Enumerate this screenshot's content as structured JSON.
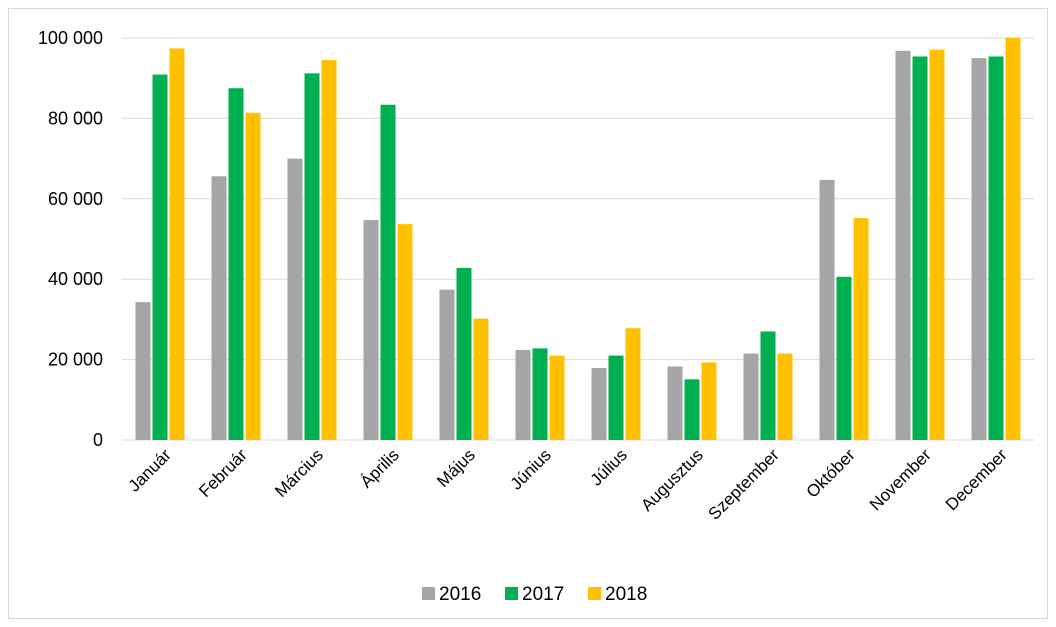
{
  "chart_data": {
    "type": "bar",
    "title": "",
    "xlabel": "",
    "ylabel": "",
    "ylim": [
      0,
      100000
    ],
    "yticks": [
      0,
      20000,
      40000,
      60000,
      80000,
      100000
    ],
    "ytick_labels": [
      "0",
      "20 000",
      "40 000",
      "60 000",
      "80 000",
      "100 000"
    ],
    "grid": "horizontal",
    "legend_position": "bottom",
    "categories": [
      "Január",
      "Február",
      "Március",
      "Április",
      "Május",
      "Június",
      "Július",
      "Augusztus",
      "Szeptember",
      "Október",
      "November",
      "December"
    ],
    "series": [
      {
        "name": "2016",
        "color": "#a5a5a5",
        "values": [
          34300,
          65600,
          70000,
          54700,
          37400,
          22400,
          17900,
          18300,
          21500,
          64700,
          96800,
          95000
        ]
      },
      {
        "name": "2017",
        "color": "#00b050",
        "values": [
          90900,
          87500,
          91200,
          83400,
          42800,
          22800,
          21000,
          15100,
          27000,
          40600,
          95400,
          95400
        ]
      },
      {
        "name": "2018",
        "color": "#ffc000",
        "values": [
          97400,
          81400,
          94500,
          53700,
          30200,
          21000,
          27800,
          19300,
          21500,
          55200,
          97100,
          100200
        ]
      }
    ]
  }
}
